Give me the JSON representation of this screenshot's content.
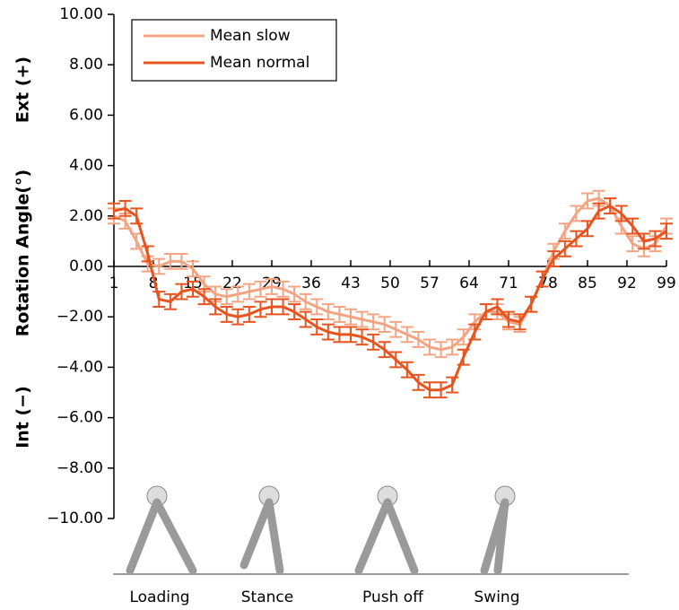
{
  "chart_data": {
    "type": "line",
    "y_axis_label_parts": [
      "Ext (+)",
      "Rotation Angle(°)",
      "Int (−)"
    ],
    "phase_labels": [
      "Loading",
      "Stance",
      "Push off",
      "Swing"
    ],
    "x": [
      1,
      3,
      5,
      7,
      9,
      11,
      13,
      15,
      17,
      19,
      21,
      23,
      25,
      27,
      29,
      31,
      33,
      35,
      37,
      39,
      41,
      43,
      45,
      47,
      49,
      51,
      53,
      55,
      57,
      59,
      61,
      63,
      65,
      67,
      69,
      71,
      73,
      75,
      77,
      79,
      81,
      83,
      85,
      87,
      89,
      91,
      93,
      95,
      97,
      99
    ],
    "series": [
      {
        "name": "Mean slow",
        "color": "#f3a583",
        "error": 0.3,
        "values": [
          2.0,
          1.8,
          1.0,
          0.1,
          0.0,
          0.2,
          0.2,
          -0.1,
          -0.7,
          -1.1,
          -1.2,
          -1.1,
          -1.0,
          -0.9,
          -0.8,
          -0.9,
          -1.1,
          -1.4,
          -1.6,
          -1.8,
          -1.9,
          -2.0,
          -2.1,
          -2.2,
          -2.3,
          -2.5,
          -2.7,
          -2.9,
          -3.2,
          -3.3,
          -3.2,
          -2.8,
          -2.2,
          -1.8,
          -1.8,
          -2.2,
          -2.3,
          -1.5,
          -0.5,
          0.6,
          1.4,
          2.1,
          2.6,
          2.7,
          2.4,
          1.6,
          0.9,
          0.7,
          0.9,
          1.6
        ]
      },
      {
        "name": "Mean normal",
        "color": "#e8541f",
        "error": 0.3,
        "values": [
          2.2,
          2.3,
          2.0,
          0.5,
          -1.3,
          -1.4,
          -1.0,
          -0.9,
          -1.2,
          -1.6,
          -1.9,
          -2.0,
          -1.9,
          -1.7,
          -1.6,
          -1.6,
          -1.8,
          -2.1,
          -2.4,
          -2.6,
          -2.7,
          -2.7,
          -2.8,
          -3.0,
          -3.3,
          -3.7,
          -4.1,
          -4.6,
          -4.9,
          -4.9,
          -4.7,
          -3.6,
          -2.6,
          -1.8,
          -1.6,
          -2.1,
          -2.2,
          -1.5,
          -0.5,
          0.3,
          0.7,
          1.1,
          1.5,
          2.2,
          2.4,
          2.1,
          1.6,
          1.0,
          1.1,
          1.4
        ]
      }
    ],
    "xlim": [
      1,
      99
    ],
    "xticks": [
      1,
      8,
      15,
      22,
      29,
      36,
      43,
      50,
      57,
      64,
      71,
      78,
      85,
      92,
      99
    ],
    "ylim": [
      -10,
      10
    ],
    "yticks": [
      {
        "value": -10,
        "label": "−10.00"
      },
      {
        "value": -8,
        "label": "−8.00"
      },
      {
        "value": -6,
        "label": "−6.00"
      },
      {
        "value": -4,
        "label": "−4.00"
      },
      {
        "value": -2,
        "label": "−2.00"
      },
      {
        "value": 0,
        "label": "0.00"
      },
      {
        "value": 2,
        "label": "2.00"
      },
      {
        "value": 4,
        "label": "4.00"
      },
      {
        "value": 6,
        "label": "6.00"
      },
      {
        "value": 8,
        "label": "8.00"
      },
      {
        "value": 10,
        "label": "10.00"
      }
    ],
    "legend": "upper left"
  }
}
